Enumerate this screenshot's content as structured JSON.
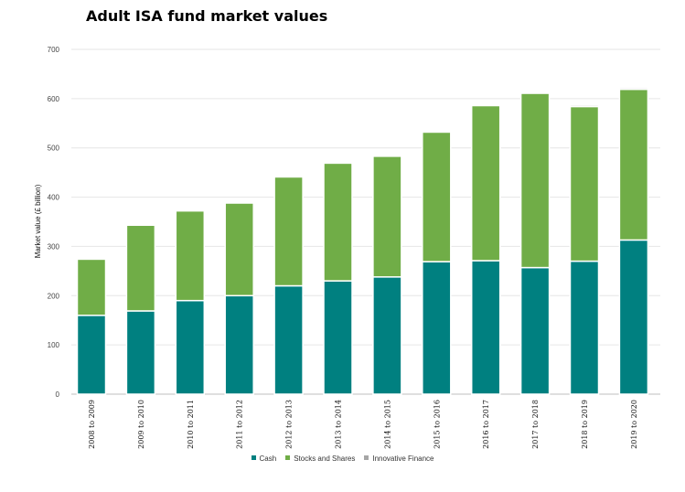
{
  "chart_data": {
    "type": "bar",
    "stacked": true,
    "title": "Adult ISA fund market values",
    "xlabel": "",
    "ylabel": "Market value (£ billion)",
    "ylim": [
      0,
      700
    ],
    "yticks": [
      0,
      100,
      200,
      300,
      400,
      500,
      600,
      700
    ],
    "grid": true,
    "legend_position": "bottom",
    "categories": [
      "2008 to 2009",
      "2009 to 2010",
      "2010 to 2011",
      "2011 to 2012",
      "2012 to 2013",
      "2013 to 2014",
      "2014 to 2015",
      "2015 to 2016",
      "2016 to 2017",
      "2017 to 2018",
      "2018 to 2019",
      "2019 to 2020"
    ],
    "series": [
      {
        "name": "Cash",
        "color": "#008080",
        "values": [
          160,
          169,
          190,
          200,
          220,
          230,
          238,
          269,
          271,
          257,
          270,
          313
        ]
      },
      {
        "name": "Stocks and Shares",
        "color": "#70AD47",
        "values": [
          114,
          174,
          182,
          188,
          221,
          239,
          245,
          263,
          315,
          354,
          314,
          306
        ]
      },
      {
        "name": "Innovative Finance",
        "color": "#A6A6A6",
        "values": [
          0,
          0,
          0,
          0,
          0,
          0,
          0,
          0,
          1,
          2,
          3,
          3
        ]
      }
    ]
  }
}
